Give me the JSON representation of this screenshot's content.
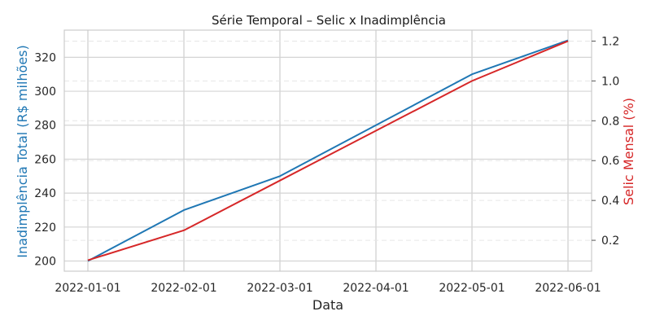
{
  "chart_data": {
    "type": "line",
    "title": "Série Temporal – Selic x Inadimplência",
    "xlabel": "Data",
    "ylabel_left": "Inadimplência Total (R$ milhões)",
    "ylabel_right": "Selic Mensal (%)",
    "x": [
      "2022-01-01",
      "2022-02-01",
      "2022-03-01",
      "2022-04-01",
      "2022-05-01",
      "2022-06-01"
    ],
    "series": [
      {
        "name": "Inadimplência Total (R$ milhões)",
        "axis": "left",
        "color": "#1f77b4",
        "values": [
          200,
          230,
          250,
          280,
          310,
          330
        ]
      },
      {
        "name": "Selic Mensal (%)",
        "axis": "right",
        "color": "#d62728",
        "values": [
          0.1,
          0.25,
          0.5,
          0.75,
          1.0,
          1.2
        ]
      }
    ],
    "ylim_left": [
      194,
      336
    ],
    "ylim_right": [
      0.045,
      1.255
    ],
    "yticks_left": [
      200,
      220,
      240,
      260,
      280,
      300,
      320
    ],
    "yticks_right": [
      0.2,
      0.4,
      0.6,
      0.8,
      1.0,
      1.2
    ],
    "ytick_labels_right": [
      "0.2",
      "0.4",
      "0.6",
      "0.8",
      "1.0",
      "1.2"
    ],
    "grid": true,
    "right_grid_dashed": true
  }
}
